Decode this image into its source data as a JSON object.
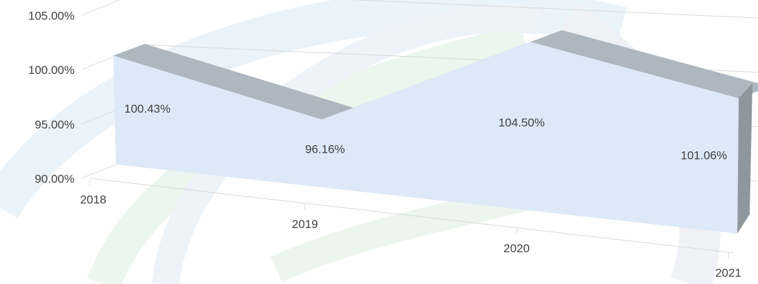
{
  "chart_data": {
    "type": "area3d",
    "categories": [
      "2018",
      "2019",
      "2020",
      "2021"
    ],
    "values": [
      100.43,
      96.16,
      104.5,
      101.06
    ],
    "value_labels": [
      "100.43%",
      "96.16%",
      "104.50%",
      "101.06%"
    ],
    "color": "#dde9f7",
    "top_color": "#aeb7c0",
    "side_color": "#8f979e",
    "ylim": [
      90,
      105
    ],
    "yticks": [
      {
        "value": 90,
        "label": "90.00%"
      },
      {
        "value": 95,
        "label": "95.00%"
      },
      {
        "value": 100,
        "label": "100.00%"
      },
      {
        "value": 105,
        "label": "105.00%"
      }
    ],
    "grid": true
  }
}
